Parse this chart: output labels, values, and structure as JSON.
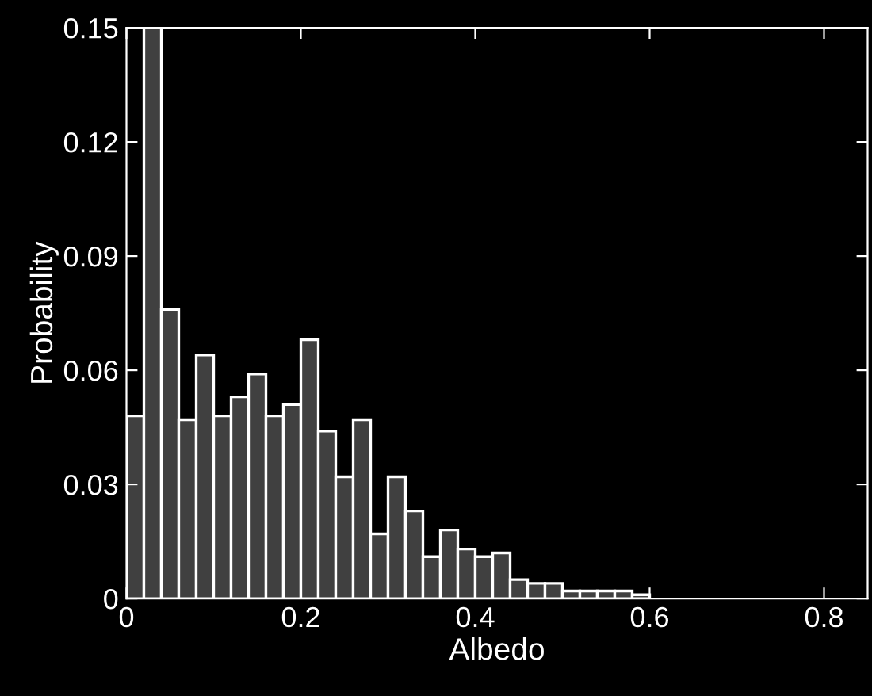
{
  "chart_data": {
    "type": "histogram",
    "xlabel": "Albedo",
    "ylabel": "Probability",
    "bins": [
      0,
      0.02,
      0.04,
      0.06,
      0.08,
      0.1,
      0.12,
      0.14,
      0.16,
      0.18,
      0.2,
      0.22,
      0.24,
      0.26,
      0.28,
      0.3,
      0.32,
      0.34,
      0.36,
      0.38,
      0.4,
      0.42,
      0.44,
      0.46,
      0.48,
      0.5,
      0.52,
      0.54,
      0.56,
      0.58,
      0.6
    ],
    "values": [
      0.048,
      0.15,
      0.076,
      0.047,
      0.064,
      0.048,
      0.053,
      0.059,
      0.048,
      0.051,
      0.068,
      0.044,
      0.032,
      0.047,
      0.017,
      0.032,
      0.023,
      0.011,
      0.018,
      0.013,
      0.011,
      0.012,
      0.005,
      0.004,
      0.004,
      0.002,
      0.002,
      0.002,
      0.002,
      0.001
    ],
    "color": "#404040",
    "xlim": [
      0,
      0.85
    ],
    "xticks": [
      0,
      0.2,
      0.4,
      0.6,
      0.8
    ],
    "ylim": [
      0,
      0.15
    ],
    "yticks": [
      0,
      0.03,
      0.06,
      0.09,
      0.12,
      0.15
    ],
    "grid": false
  }
}
